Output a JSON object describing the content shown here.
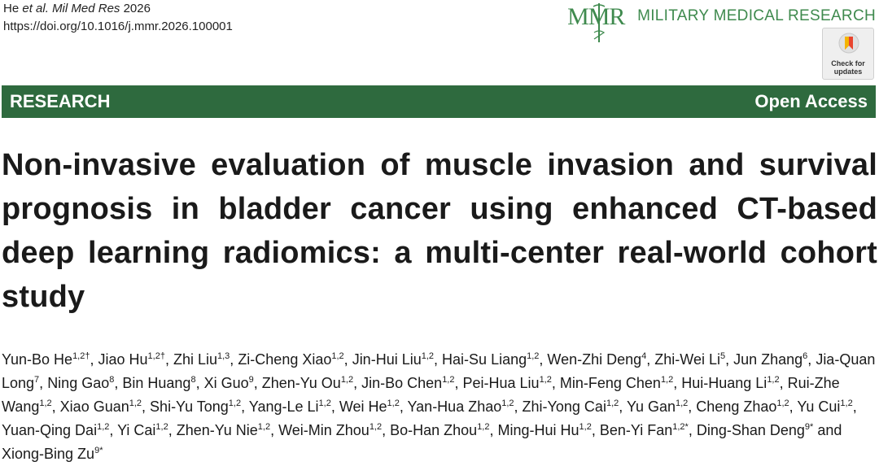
{
  "citation": {
    "authors_prefix": "He",
    "authors_etal": "et al.",
    "journal_short": "Mil Med Res",
    "year": "2026",
    "doi": "https://doi.org/10.1016/j.mmr.2026.100001"
  },
  "journal": {
    "logo_text": "MMR",
    "name": "MILITARY MEDICAL RESEARCH",
    "brand_color": "#3f8a4e"
  },
  "check_updates": {
    "line1": "Check for",
    "line2": "updates"
  },
  "section_bar": {
    "left": "RESEARCH",
    "right": "Open Access",
    "color": "#2e6a3e"
  },
  "article": {
    "title": "Non-invasive evaluation of muscle invasion and survival prognosis in bladder cancer using enhanced CT-based deep learning radiomics: a multi-center real-world cohort study"
  },
  "authors": [
    {
      "name": "Yun-Bo He",
      "aff": "1,2†"
    },
    {
      "name": "Jiao Hu",
      "aff": "1,2†"
    },
    {
      "name": "Zhi Liu",
      "aff": "1,3"
    },
    {
      "name": "Zi-Cheng Xiao",
      "aff": "1,2"
    },
    {
      "name": "Jin-Hui Liu",
      "aff": "1,2"
    },
    {
      "name": "Hai-Su Liang",
      "aff": "1,2"
    },
    {
      "name": "Wen-Zhi Deng",
      "aff": "4"
    },
    {
      "name": "Zhi-Wei Li",
      "aff": "5"
    },
    {
      "name": "Jun Zhang",
      "aff": "6"
    },
    {
      "name": "Jia-Quan Long",
      "aff": "7"
    },
    {
      "name": "Ning Gao",
      "aff": "8"
    },
    {
      "name": "Bin Huang",
      "aff": "8"
    },
    {
      "name": "Xi Guo",
      "aff": "9"
    },
    {
      "name": "Zhen-Yu Ou",
      "aff": "1,2"
    },
    {
      "name": "Jin-Bo Chen",
      "aff": "1,2"
    },
    {
      "name": "Pei-Hua Liu",
      "aff": "1,2"
    },
    {
      "name": "Min-Feng Chen",
      "aff": "1,2"
    },
    {
      "name": "Hui-Huang Li",
      "aff": "1,2"
    },
    {
      "name": "Rui-Zhe Wang",
      "aff": "1,2"
    },
    {
      "name": "Xiao Guan",
      "aff": "1,2"
    },
    {
      "name": "Shi-Yu Tong",
      "aff": "1,2"
    },
    {
      "name": "Yang-Le Li",
      "aff": "1,2"
    },
    {
      "name": "Wei He",
      "aff": "1,2"
    },
    {
      "name": "Yan-Hua Zhao",
      "aff": "1,2"
    },
    {
      "name": "Zhi-Yong Cai",
      "aff": "1,2"
    },
    {
      "name": "Yu Gan",
      "aff": "1,2"
    },
    {
      "name": "Cheng Zhao",
      "aff": "1,2"
    },
    {
      "name": "Yu Cui",
      "aff": "1,2"
    },
    {
      "name": "Yuan-Qing Dai",
      "aff": "1,2"
    },
    {
      "name": "Yi Cai",
      "aff": "1,2"
    },
    {
      "name": "Zhen-Yu Nie",
      "aff": "1,2"
    },
    {
      "name": "Wei-Min Zhou",
      "aff": "1,2"
    },
    {
      "name": "Bo-Han Zhou",
      "aff": "1,2"
    },
    {
      "name": "Ming-Hui Hu",
      "aff": "1,2"
    },
    {
      "name": "Ben-Yi Fan",
      "aff": "1,2*"
    },
    {
      "name": "Ding-Shan Deng",
      "aff": "9*"
    },
    {
      "name": "Xiong-Bing Zu",
      "aff": "9*"
    }
  ],
  "authors_conjunction": "and"
}
